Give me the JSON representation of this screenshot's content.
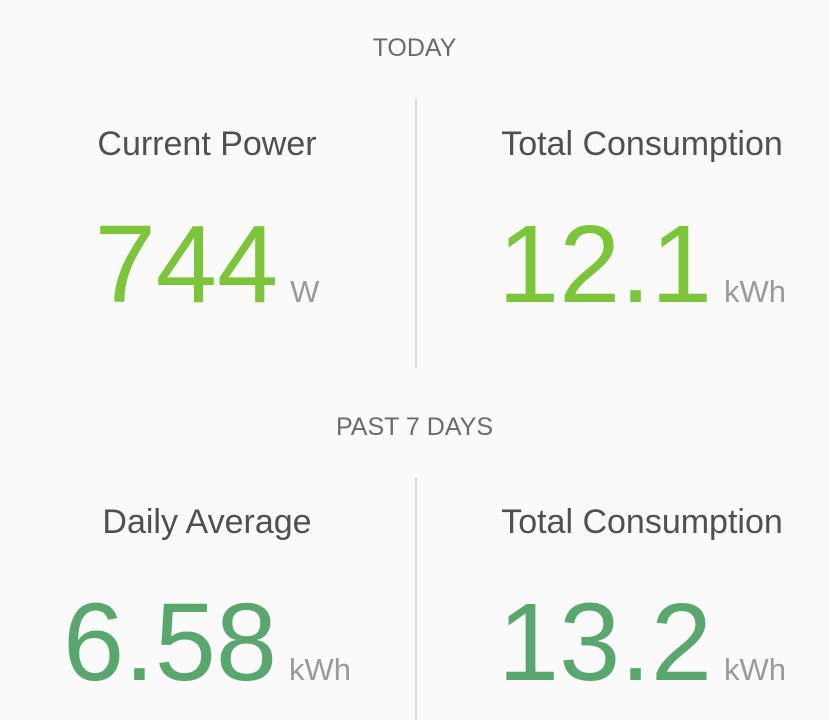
{
  "sections": [
    {
      "title": "TODAY",
      "stats": [
        {
          "label": "Current Power",
          "value": "744",
          "unit": "W"
        },
        {
          "label": "Total Consumption",
          "value": "12.1",
          "unit": "kWh"
        }
      ]
    },
    {
      "title": "PAST 7 DAYS",
      "stats": [
        {
          "label": "Daily Average",
          "value": "6.58",
          "unit": "kWh"
        },
        {
          "label": "Total Consumption",
          "value": "13.2",
          "unit": "kWh"
        }
      ]
    }
  ]
}
